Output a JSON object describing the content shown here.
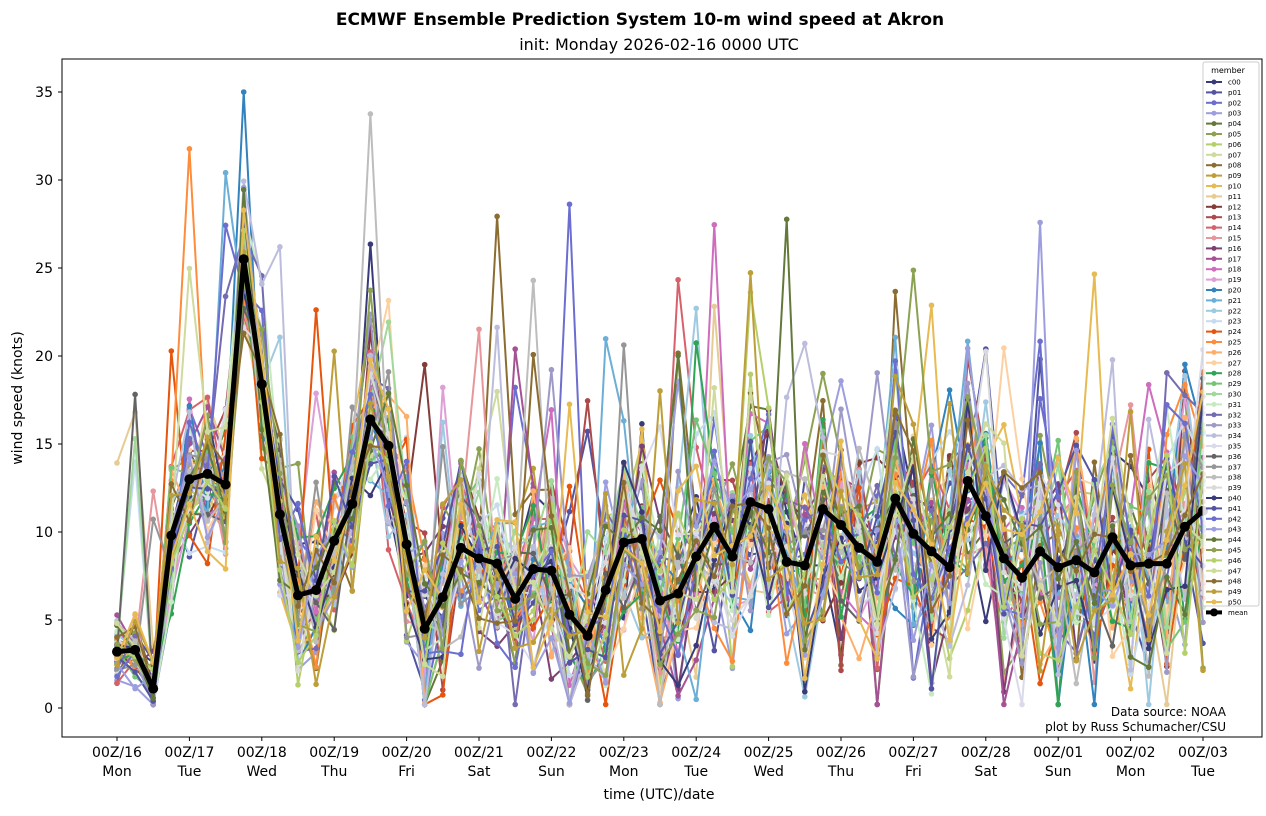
{
  "chart_data": {
    "type": "line",
    "title": "ECMWF Ensemble Prediction System 10-m wind speed at Akron",
    "subtitle": "init: Monday 2026-02-16 0000 UTC",
    "xlabel": "time (UTC)/date",
    "ylabel": "wind speed (knots)",
    "ylim": [
      -1.6,
      36.9
    ],
    "yticks": [
      0,
      5,
      10,
      15,
      20,
      25,
      30,
      35
    ],
    "x_step_hours": 6,
    "xticks": [
      {
        "top": "00Z/16",
        "bottom": "Mon"
      },
      {
        "top": "00Z/17",
        "bottom": "Tue"
      },
      {
        "top": "00Z/18",
        "bottom": "Wed"
      },
      {
        "top": "00Z/19",
        "bottom": "Thu"
      },
      {
        "top": "00Z/20",
        "bottom": "Fri"
      },
      {
        "top": "00Z/21",
        "bottom": "Sat"
      },
      {
        "top": "00Z/22",
        "bottom": "Sun"
      },
      {
        "top": "00Z/23",
        "bottom": "Mon"
      },
      {
        "top": "00Z/24",
        "bottom": "Tue"
      },
      {
        "top": "00Z/25",
        "bottom": "Wed"
      },
      {
        "top": "00Z/26",
        "bottom": "Thu"
      },
      {
        "top": "00Z/27",
        "bottom": "Fri"
      },
      {
        "top": "00Z/28",
        "bottom": "Sat"
      },
      {
        "top": "00Z/01",
        "bottom": "Sun"
      },
      {
        "top": "00Z/02",
        "bottom": "Mon"
      },
      {
        "top": "00Z/03",
        "bottom": "Tue"
      }
    ],
    "legend": {
      "title": "member",
      "placement": "right"
    },
    "members": [
      "c00",
      "p01",
      "p02",
      "p03",
      "p04",
      "p05",
      "p06",
      "p07",
      "p08",
      "p09",
      "p10",
      "p11",
      "p12",
      "p13",
      "p14",
      "p15",
      "p16",
      "p17",
      "p18",
      "p19",
      "p20",
      "p21",
      "p22",
      "p23",
      "p24",
      "p25",
      "p26",
      "p27",
      "p28",
      "p29",
      "p30",
      "p31",
      "p32",
      "p33",
      "p34",
      "p35",
      "p36",
      "p37",
      "p38",
      "p39",
      "p40",
      "p41",
      "p42",
      "p43",
      "p44",
      "p45",
      "p46",
      "p47",
      "p48",
      "p49",
      "p50"
    ],
    "member_colors": [
      "#393b79",
      "#5254a3",
      "#6b6ecf",
      "#9c9ede",
      "#637939",
      "#8ca252",
      "#b5cf6b",
      "#cedb9c",
      "#8c6d31",
      "#bd9e39",
      "#e7ba52",
      "#e7cb94",
      "#843c39",
      "#ad494a",
      "#d6616b",
      "#e7969c",
      "#7b4173",
      "#a55194",
      "#ce6dbd",
      "#de9ed6",
      "#3182bd",
      "#6baed6",
      "#9ecae1",
      "#c6dbef",
      "#e6550d",
      "#fd8d3c",
      "#fdae6b",
      "#fdd0a2",
      "#31a354",
      "#74c476",
      "#a1d99b",
      "#c7e9c0",
      "#756bb1",
      "#9e9ac8",
      "#bcbddc",
      "#dadaeb",
      "#636363",
      "#969696",
      "#bdbdbd",
      "#d9d9d9",
      "#393b79",
      "#5254a3",
      "#6b6ecf",
      "#9c9ede",
      "#637939",
      "#8ca252",
      "#b5cf6b",
      "#cedb9c",
      "#8c6d31",
      "#bd9e39",
      "#e7ba52"
    ],
    "mean": {
      "name": "mean",
      "color": "#000000",
      "values": [
        3.2,
        3.3,
        1.1,
        9.8,
        13.0,
        13.3,
        12.7,
        25.5,
        18.4,
        11.0,
        6.4,
        6.7,
        9.5,
        11.6,
        16.4,
        14.9,
        9.3,
        4.5,
        6.3,
        9.1,
        8.5,
        8.2,
        6.2,
        7.9,
        7.8,
        5.3,
        4.1,
        6.7,
        9.4,
        9.6,
        6.1,
        6.5,
        8.6,
        10.3,
        8.6,
        11.7,
        11.3,
        8.3,
        8.1,
        11.3,
        10.4,
        9.1,
        8.3,
        11.9,
        9.9,
        8.9,
        8.0,
        12.9,
        10.9,
        8.5,
        7.4,
        8.9,
        8.0,
        8.4,
        7.7,
        9.7,
        8.1,
        8.2,
        8.2,
        10.3,
        11.2
      ]
    },
    "annotations": [
      "Data source: NOAA",
      "plot by Russ Schumacher/CSU"
    ]
  }
}
